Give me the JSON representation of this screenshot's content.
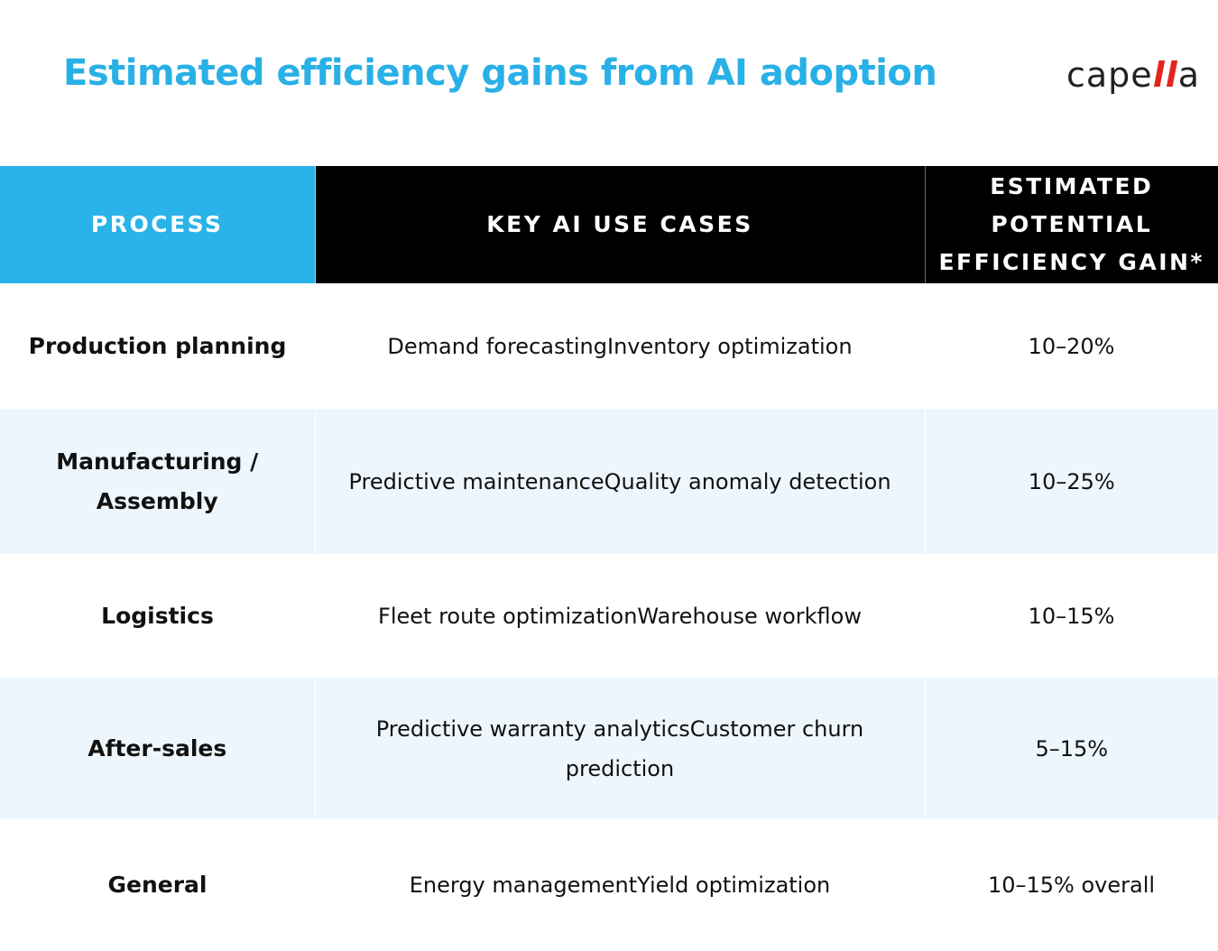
{
  "title": "Estimated efficiency gains from AI adoption",
  "logo": {
    "text_start": "cape",
    "text_accent": "ll",
    "text_end": "a",
    "accent_color": "#e1251b"
  },
  "colors": {
    "title": "#29b0e6",
    "process_header_bg": "#29b3e8",
    "header_bg": "#000000",
    "alt_row_bg": "#eef6fd"
  },
  "table": {
    "headers": {
      "process": "PROCESS",
      "use_cases": "KEY AI USE CASES",
      "gain": "ESTIMATED POTENTIAL EFFICIENCY GAIN*"
    },
    "rows": [
      {
        "process": "Production planning",
        "use_cases": "Demand forecastingInventory optimization",
        "gain": "10–20%"
      },
      {
        "process": "Manufacturing / Assembly",
        "use_cases": "Predictive maintenanceQuality anomaly detection",
        "gain": "10–25%"
      },
      {
        "process": "Logistics",
        "use_cases": "Fleet route optimizationWarehouse workflow",
        "gain": "10–15%"
      },
      {
        "process": "After-sales",
        "use_cases": "Predictive warranty analyticsCustomer churn prediction",
        "gain": "5–15%"
      },
      {
        "process": "General",
        "use_cases": "Energy managementYield optimization",
        "gain": "10–15% overall"
      }
    ]
  }
}
